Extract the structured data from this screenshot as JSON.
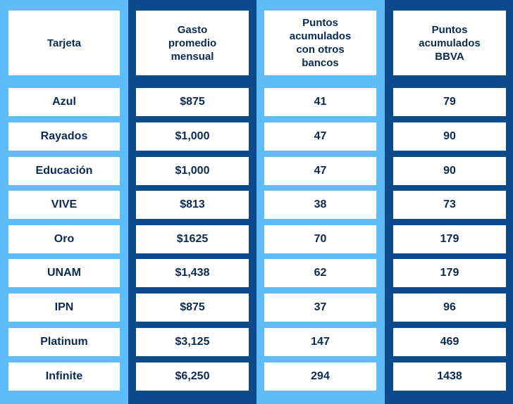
{
  "headers": {
    "card": "Tarjeta",
    "spend_line1": "Gasto",
    "spend_line2": "promedio",
    "spend_line3": "mensual",
    "other_line1": "Puntos",
    "other_line2": "acumulados",
    "other_line3": "con otros",
    "other_line4": "bancos",
    "bbva_line1": "Puntos",
    "bbva_line2": "acumulados",
    "bbva_line3": "BBVA"
  },
  "rows": [
    {
      "card": "Azul",
      "spend": "$875",
      "other": "41",
      "bbva": "79"
    },
    {
      "card": "Rayados",
      "spend": "$1,000",
      "other": "47",
      "bbva": "90"
    },
    {
      "card": "Educación",
      "spend": "$1,000",
      "other": "47",
      "bbva": "90"
    },
    {
      "card": "VIVE",
      "spend": "$813",
      "other": "38",
      "bbva": "73"
    },
    {
      "card": "Oro",
      "spend": "$1625",
      "other": "70",
      "bbva": "179"
    },
    {
      "card": "UNAM",
      "spend": "$1,438",
      "other": "62",
      "bbva": "179"
    },
    {
      "card": "IPN",
      "spend": "$875",
      "other": "37",
      "bbva": "96"
    },
    {
      "card": "Platinum",
      "spend": "$3,125",
      "other": "147",
      "bbva": "469"
    },
    {
      "card": "Infinite",
      "spend": "$6,250",
      "other": "294",
      "bbva": "1438"
    }
  ],
  "colors": {
    "light_blue": "#5fbcf8",
    "dark_blue": "#0d4a8c",
    "text": "#0b2a52",
    "cell": "#ffffff"
  }
}
